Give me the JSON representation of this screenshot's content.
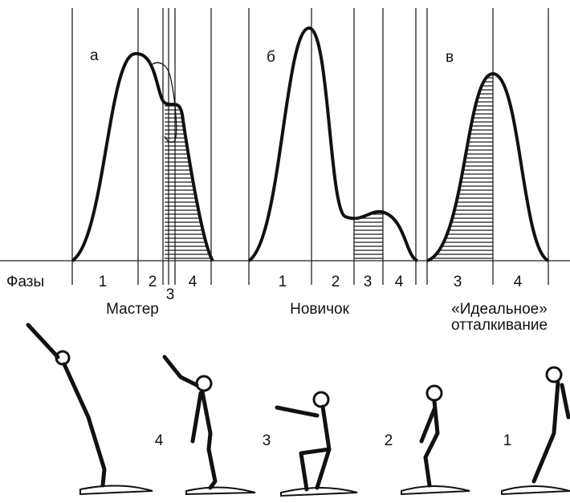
{
  "phases_label": "Фазы",
  "panels": [
    {
      "letter": "а",
      "phases": [
        "1",
        "2",
        "3",
        "4"
      ],
      "caption": "Мастер"
    },
    {
      "letter": "б",
      "phases": [
        "1",
        "2",
        "3",
        "4"
      ],
      "caption": "Новичок"
    },
    {
      "letter": "в",
      "phases": [
        "3",
        "4"
      ],
      "caption_lines": [
        "«Идеальное»",
        "отталкивание"
      ]
    }
  ],
  "figures": [
    "4",
    "3",
    "2",
    "1"
  ]
}
